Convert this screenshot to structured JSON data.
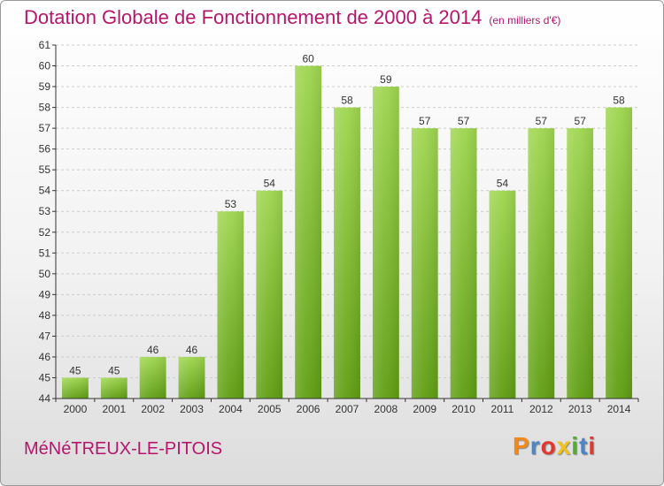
{
  "header": {
    "title": "Dotation Globale de Fonctionnement de 2000 à 2014",
    "subtitle": "(en milliers d'€)"
  },
  "footer": {
    "commune": "MéNéTREUX-LE-PITOIS",
    "logo_letters": [
      "P",
      "r",
      "o",
      "x",
      "i",
      "t",
      "i"
    ]
  },
  "colors": {
    "title": "#b5166b",
    "bar_top": "#9fd64f",
    "bar_bottom": "#5f9e12",
    "grid": "#cccccc"
  },
  "chart_data": {
    "type": "bar",
    "title": "Dotation Globale de Fonctionnement de 2000 à 2014",
    "subtitle": "(en milliers d'€)",
    "xlabel": "",
    "ylabel": "",
    "categories": [
      "2000",
      "2001",
      "2002",
      "2003",
      "2004",
      "2005",
      "2006",
      "2007",
      "2008",
      "2009",
      "2010",
      "2011",
      "2012",
      "2013",
      "2014"
    ],
    "values": [
      45,
      45,
      46,
      46,
      53,
      54,
      60,
      58,
      59,
      57,
      57,
      54,
      57,
      57,
      58
    ],
    "data_labels": [
      "45",
      "45",
      "46",
      "46",
      "53",
      "54",
      "60",
      "58",
      "59",
      "57",
      "57",
      "54",
      "57",
      "57",
      "58"
    ],
    "ylim": [
      44,
      61
    ],
    "yticks": [
      "44",
      "45",
      "46",
      "47",
      "48",
      "49",
      "50",
      "51",
      "52",
      "53",
      "54",
      "55",
      "56",
      "57",
      "58",
      "59",
      "60",
      "61"
    ],
    "grid": true,
    "legend": "none"
  }
}
